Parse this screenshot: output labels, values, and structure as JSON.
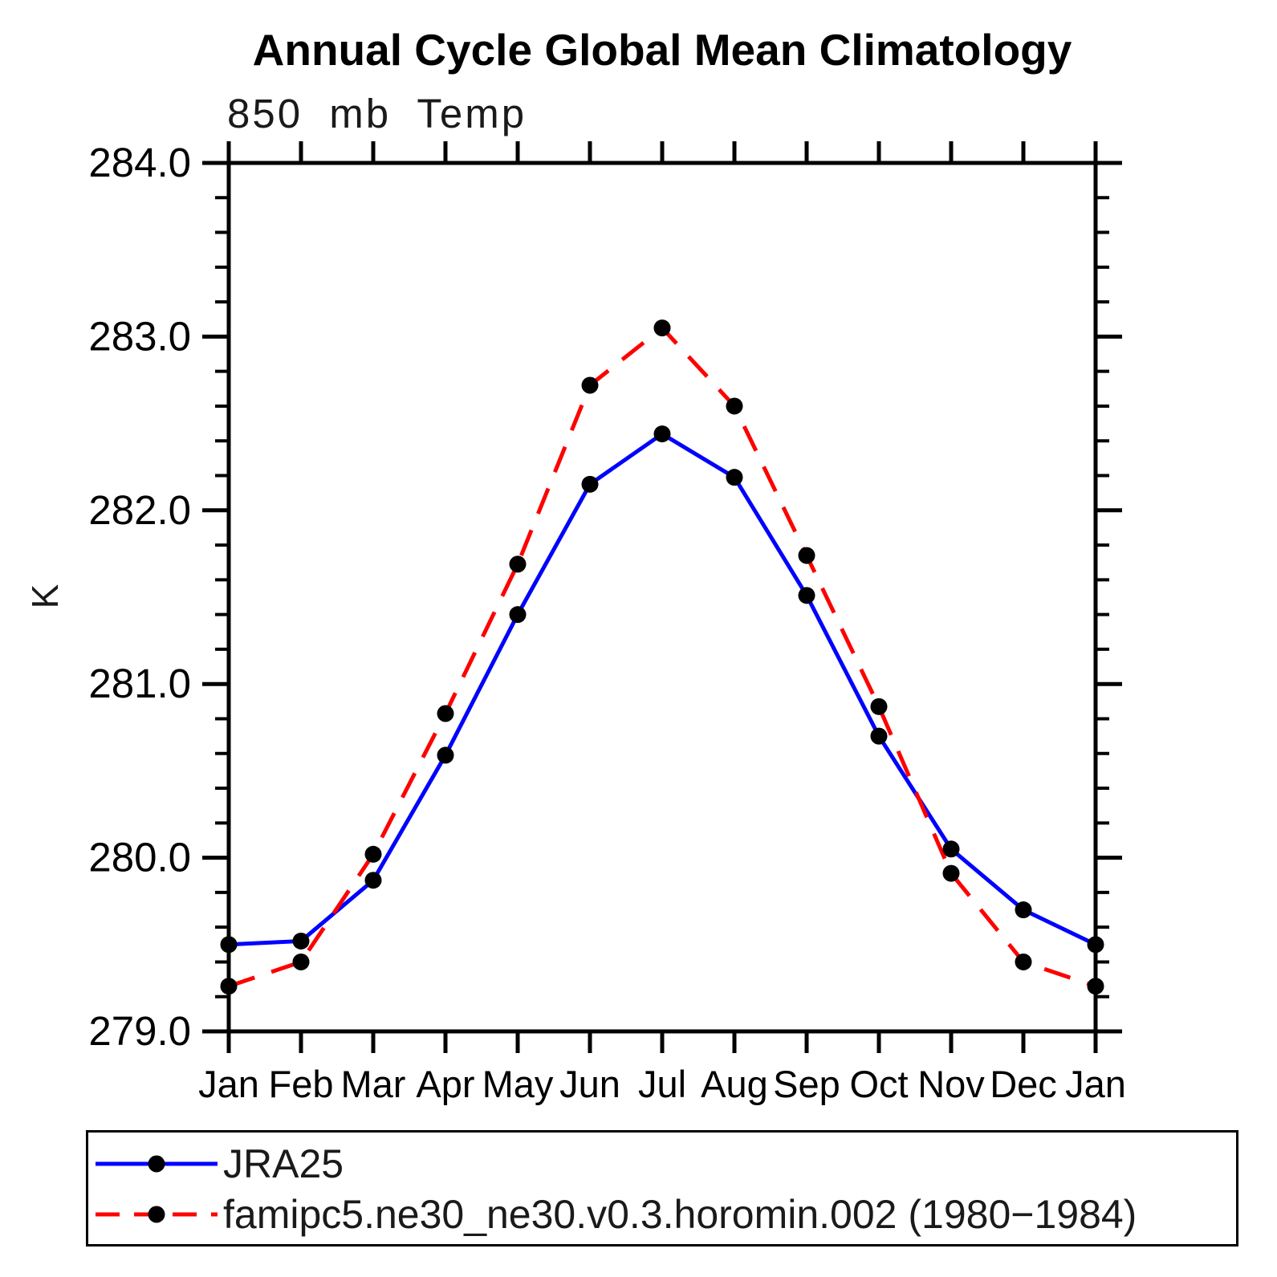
{
  "chart_data": {
    "type": "line",
    "title": "Annual Cycle Global Mean Climatology",
    "subtitle": "850 mb Temp",
    "ylabel": "K",
    "xlabel": "",
    "categories": [
      "Jan",
      "Feb",
      "Mar",
      "Apr",
      "May",
      "Jun",
      "Jul",
      "Aug",
      "Sep",
      "Oct",
      "Nov",
      "Dec",
      "Jan"
    ],
    "ylim": [
      279.0,
      284.0
    ],
    "ytick_major_step": 1.0,
    "ytick_minor_step": 0.2,
    "ytick_labels": [
      "279.0",
      "280.0",
      "281.0",
      "282.0",
      "283.0",
      "284.0"
    ],
    "grid": false,
    "legend_position": "bottom-left-box",
    "axis_color": "#000000",
    "marker": "filled-circle",
    "marker_color": "#000000",
    "series": [
      {
        "name": "JRA25",
        "color": "#0000ff",
        "line_style": "solid",
        "values": [
          279.5,
          279.52,
          279.87,
          280.59,
          281.4,
          282.15,
          282.44,
          282.19,
          281.51,
          280.7,
          280.05,
          279.7,
          279.5
        ]
      },
      {
        "name": "famipc5.ne30_ne30.v0.3.horomin.002 (1980−1984)",
        "color": "#ff0000",
        "line_style": "dashed",
        "values": [
          279.26,
          279.4,
          280.02,
          280.83,
          281.69,
          282.72,
          283.05,
          282.6,
          281.74,
          280.87,
          279.91,
          279.4,
          279.26
        ]
      }
    ]
  }
}
